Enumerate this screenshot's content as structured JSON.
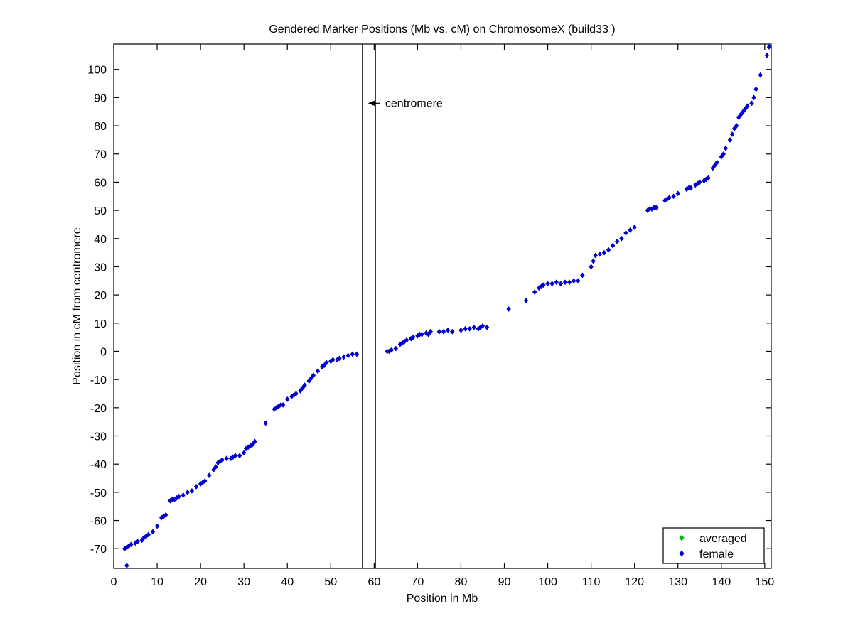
{
  "figure": {
    "background": "#ffffff",
    "plot_border_color": "#000000"
  },
  "chart_data": {
    "type": "scatter",
    "title": "Gendered Marker Positions (Mb vs. cM) on ChromosomeX (build33 )",
    "xlabel": "Position in Mb",
    "ylabel": "Position in cM from centromere",
    "xlim": [
      0,
      151.5
    ],
    "ylim": [
      -77,
      109
    ],
    "x_ticks": [
      0,
      10,
      20,
      30,
      40,
      50,
      60,
      70,
      80,
      90,
      100,
      110,
      120,
      130,
      140,
      150
    ],
    "y_ticks": [
      -70,
      -60,
      -50,
      -40,
      -30,
      -20,
      -10,
      0,
      10,
      20,
      30,
      40,
      50,
      60,
      70,
      80,
      90,
      100
    ],
    "grid": false,
    "legend_position": "lower right",
    "centromere_lines_x": [
      57.3,
      60.3
    ],
    "annotations": [
      {
        "text": "centromere",
        "y": 88,
        "arrow_tip_x": 58.6,
        "arrow_tail_x": 61.4
      }
    ],
    "series": [
      {
        "name": "averaged",
        "color": "#00bb00",
        "marker": "diamond",
        "points": []
      },
      {
        "name": "female",
        "color": "#0000cc",
        "marker": "diamond",
        "points": [
          [
            3,
            -76
          ],
          [
            2.5,
            -70
          ],
          [
            3,
            -69.5
          ],
          [
            3.5,
            -69
          ],
          [
            4,
            -68.5
          ],
          [
            5,
            -68
          ],
          [
            5.5,
            -67.5
          ],
          [
            6.5,
            -67
          ],
          [
            7,
            -66
          ],
          [
            7.5,
            -65.5
          ],
          [
            8,
            -65
          ],
          [
            9,
            -64
          ],
          [
            10,
            -62
          ],
          [
            11,
            -59
          ],
          [
            11.5,
            -58.5
          ],
          [
            12,
            -58
          ],
          [
            13,
            -53
          ],
          [
            13.5,
            -52.5
          ],
          [
            14,
            -52.5
          ],
          [
            14.5,
            -52
          ],
          [
            15,
            -51.5
          ],
          [
            16,
            -51
          ],
          [
            17,
            -50
          ],
          [
            18,
            -49.5
          ],
          [
            19,
            -48
          ],
          [
            20,
            -47
          ],
          [
            20.5,
            -46.5
          ],
          [
            21,
            -46
          ],
          [
            22,
            -44
          ],
          [
            23,
            -42
          ],
          [
            23.5,
            -41
          ],
          [
            24,
            -39.5
          ],
          [
            24.5,
            -39
          ],
          [
            25,
            -38.5
          ],
          [
            26,
            -38
          ],
          [
            27,
            -38
          ],
          [
            27.5,
            -37.5
          ],
          [
            28,
            -37
          ],
          [
            29,
            -37
          ],
          [
            30,
            -36
          ],
          [
            30.5,
            -34.5
          ],
          [
            31,
            -34
          ],
          [
            31.5,
            -33.5
          ],
          [
            32,
            -33
          ],
          [
            32.5,
            -32
          ],
          [
            35,
            -25.5
          ],
          [
            37,
            -20.5
          ],
          [
            37.5,
            -20
          ],
          [
            38,
            -19.5
          ],
          [
            38.5,
            -19
          ],
          [
            39,
            -19
          ],
          [
            40,
            -17
          ],
          [
            41,
            -16
          ],
          [
            41.5,
            -15.5
          ],
          [
            42,
            -15
          ],
          [
            43,
            -14
          ],
          [
            43.5,
            -13
          ],
          [
            44,
            -12
          ],
          [
            45,
            -10.5
          ],
          [
            45.5,
            -9.5
          ],
          [
            46,
            -8.5
          ],
          [
            47,
            -7
          ],
          [
            48,
            -5.5
          ],
          [
            48.5,
            -5
          ],
          [
            49,
            -4
          ],
          [
            50,
            -3.5
          ],
          [
            50.5,
            -3
          ],
          [
            51.5,
            -3
          ],
          [
            52,
            -2.5
          ],
          [
            53,
            -2
          ],
          [
            54,
            -1.5
          ],
          [
            55,
            -1
          ],
          [
            56,
            -1
          ],
          [
            63,
            0
          ],
          [
            63.5,
            0
          ],
          [
            64,
            0.5
          ],
          [
            65,
            1
          ],
          [
            66,
            2.5
          ],
          [
            66.5,
            3
          ],
          [
            67,
            3.5
          ],
          [
            67.5,
            4
          ],
          [
            68.5,
            4.5
          ],
          [
            69,
            5
          ],
          [
            70,
            5.5
          ],
          [
            70.5,
            6
          ],
          [
            71,
            6
          ],
          [
            72,
            6.5
          ],
          [
            72.5,
            6
          ],
          [
            73,
            7
          ],
          [
            75,
            7
          ],
          [
            76,
            7
          ],
          [
            77,
            7.5
          ],
          [
            78,
            7
          ],
          [
            80,
            7.5
          ],
          [
            81,
            8
          ],
          [
            82,
            8
          ],
          [
            83,
            8.5
          ],
          [
            84,
            8
          ],
          [
            84.5,
            8.5
          ],
          [
            85,
            9
          ],
          [
            86,
            8.5
          ],
          [
            91,
            15
          ],
          [
            95,
            18
          ],
          [
            97,
            21
          ],
          [
            98,
            22.5
          ],
          [
            98.5,
            23
          ],
          [
            99,
            23.5
          ],
          [
            100,
            24
          ],
          [
            101,
            24
          ],
          [
            102,
            24.5
          ],
          [
            103,
            24
          ],
          [
            104,
            24.5
          ],
          [
            105,
            24.5
          ],
          [
            106,
            25
          ],
          [
            107,
            25
          ],
          [
            108,
            27
          ],
          [
            110,
            30
          ],
          [
            110.5,
            32
          ],
          [
            111,
            34
          ],
          [
            112,
            34.5
          ],
          [
            113,
            35
          ],
          [
            114,
            36
          ],
          [
            115,
            37.5
          ],
          [
            116,
            39
          ],
          [
            117,
            40
          ],
          [
            118,
            42
          ],
          [
            119,
            43
          ],
          [
            120,
            44
          ],
          [
            123,
            50
          ],
          [
            123.5,
            50.5
          ],
          [
            124,
            50.5
          ],
          [
            124.5,
            51
          ],
          [
            125,
            51
          ],
          [
            127,
            53.5
          ],
          [
            127.5,
            54
          ],
          [
            128,
            54.5
          ],
          [
            129,
            55
          ],
          [
            130,
            56
          ],
          [
            132,
            57.5
          ],
          [
            132.5,
            58
          ],
          [
            133,
            58
          ],
          [
            134,
            59
          ],
          [
            134.5,
            59.5
          ],
          [
            135,
            60
          ],
          [
            136,
            60.5
          ],
          [
            136.5,
            61
          ],
          [
            137,
            61.5
          ],
          [
            138,
            65
          ],
          [
            138.5,
            66
          ],
          [
            139,
            67
          ],
          [
            140,
            69
          ],
          [
            140.5,
            70
          ],
          [
            141,
            72
          ],
          [
            142,
            75
          ],
          [
            142.5,
            77
          ],
          [
            143,
            79
          ],
          [
            143.5,
            80
          ],
          [
            144,
            83
          ],
          [
            144.5,
            84
          ],
          [
            145,
            85
          ],
          [
            145.5,
            86
          ],
          [
            146,
            87
          ],
          [
            147,
            88
          ],
          [
            147.5,
            90
          ],
          [
            148,
            93
          ],
          [
            149,
            98
          ],
          [
            150.5,
            105
          ],
          [
            151,
            108
          ]
        ]
      }
    ]
  }
}
